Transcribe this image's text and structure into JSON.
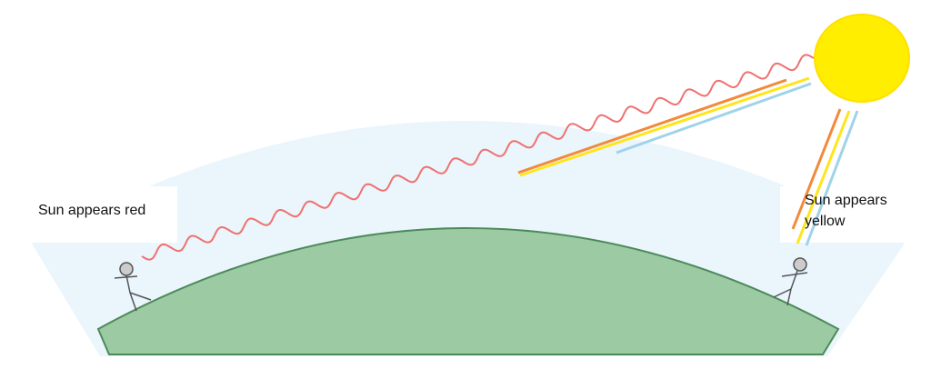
{
  "labels": {
    "left_observer": "Sun appears red",
    "right_observer_line1": "Sun appears",
    "right_observer_line2": "yellow"
  },
  "colors": {
    "atmosphere": "#eaf5fc",
    "earth": "#9ccaa3",
    "earth_outline": "#4c8a5a",
    "sun": "#ffee00",
    "red_wave": "#f07070",
    "ray_orange": "#f28a3a",
    "ray_yellow": "#ffe51a",
    "ray_blue": "#9fd3ea",
    "figure": "#555555"
  }
}
